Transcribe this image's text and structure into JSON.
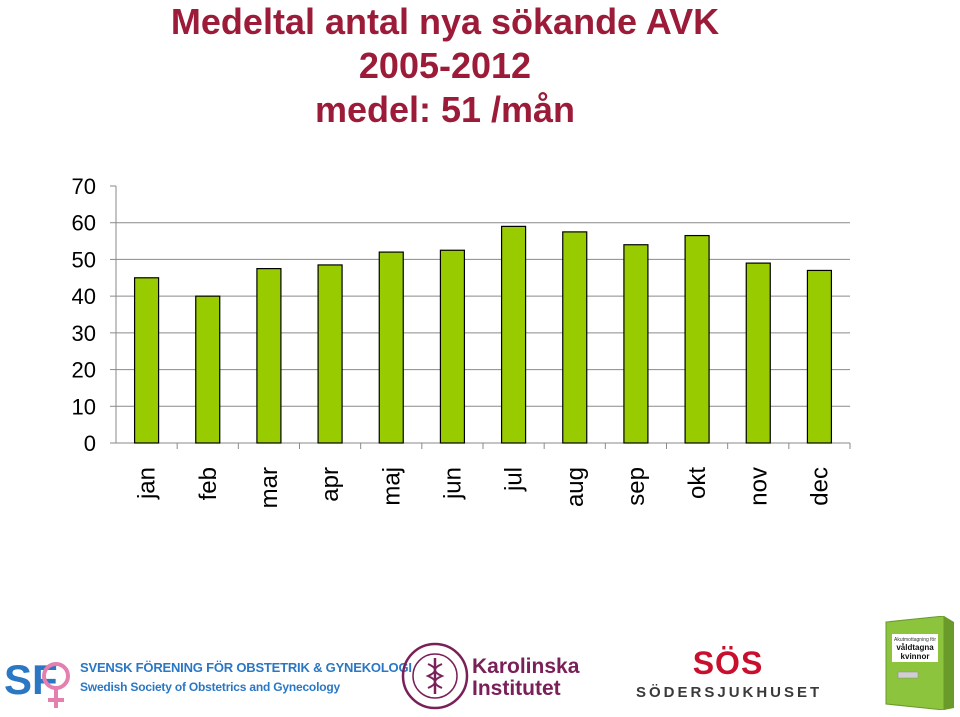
{
  "title": {
    "line1": "Medeltal antal nya sökande AVK",
    "line2": "2005-2012",
    "line3": "medel: 51 /mån"
  },
  "chart_data": {
    "type": "bar",
    "categories": [
      "jan",
      "feb",
      "mar",
      "apr",
      "maj",
      "jun",
      "jul",
      "aug",
      "sep",
      "okt",
      "nov",
      "dec"
    ],
    "values": [
      45,
      40,
      47.5,
      48.5,
      52,
      52.5,
      59,
      57.5,
      54,
      56.5,
      49,
      47
    ],
    "yticks": [
      0,
      10,
      20,
      30,
      40,
      50,
      60,
      70
    ],
    "ylim": [
      0,
      70
    ],
    "grid": true,
    "bar_color": "#99cc00",
    "bar_edge_color": "#000000",
    "legend": "none"
  },
  "logos": {
    "sfog_line1": "SVENSK FÖRENING FÖR OBSTETRIK & GYNEKOLOGI",
    "sfog_line2": "Swedish Society of Obstetrics and Gynecology",
    "ki_name_line1": "Karolinska",
    "ki_name_line2": "Institutet",
    "sos_mark": "SÖS",
    "sos_name": "SÖDERSJUKHUSET",
    "door_sign_line1": "Akutmottagning för",
    "door_sign_line2": "våldtagna",
    "door_sign_line3": "kvinnor"
  },
  "colors": {
    "title": "#9b1b38",
    "sfog_blue": "#2a77c3",
    "ki_plum": "#7a2058",
    "sos_red": "#c8102e",
    "door_green": "#8cc43e"
  }
}
